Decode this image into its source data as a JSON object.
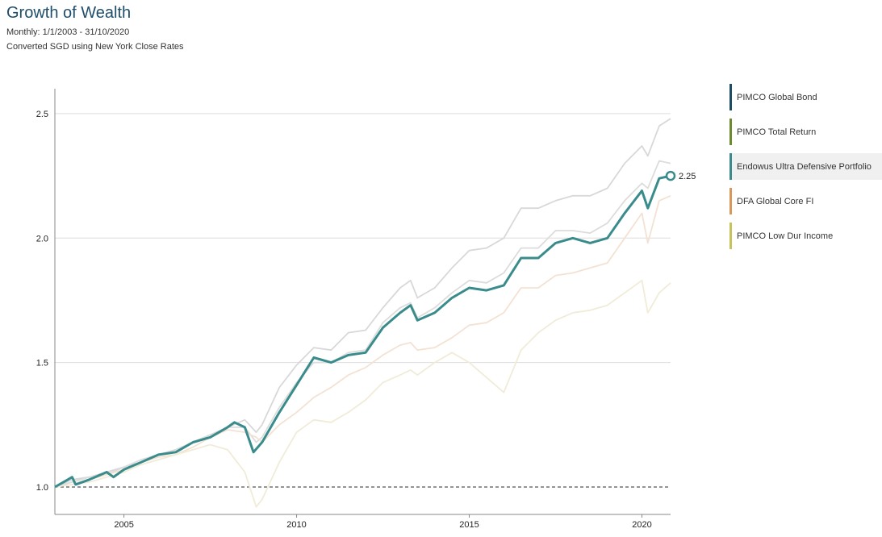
{
  "title": "Growth of Wealth",
  "subtitle_1": "Monthly: 1/1/2003 - 31/10/2020",
  "subtitle_2": "Converted SGD using New York Close Rates",
  "legend": [
    {
      "label": "PIMCO Global Bond",
      "color": "#1c4e63",
      "active": false
    },
    {
      "label": "PIMCO Total Return",
      "color": "#6c8a2e",
      "active": false
    },
    {
      "label": "Endowus Ultra Defensive Portfolio",
      "color": "#3a8c8c",
      "active": true
    },
    {
      "label": "DFA Global Core FI",
      "color": "#d9975a",
      "active": false
    },
    {
      "label": "PIMCO Low Dur Income",
      "color": "#c5c35a",
      "active": false
    }
  ],
  "chart_data": {
    "type": "line",
    "ylim": [
      0.89,
      2.6
    ],
    "xlim": [
      2003.0,
      2020.83
    ],
    "yticks": [
      1.0,
      1.5,
      2.0,
      2.5
    ],
    "xticks": [
      2005,
      2010,
      2015,
      2020
    ],
    "grid": true,
    "baseline": 1.0,
    "end_label": "2.25",
    "series": [
      {
        "name": "PIMCO Global Bond",
        "color": "#d8d8d8",
        "highlight": false,
        "points": [
          [
            2003.0,
            1.0
          ],
          [
            2003.5,
            1.03
          ],
          [
            2004.0,
            1.04
          ],
          [
            2004.5,
            1.06
          ],
          [
            2005.0,
            1.08
          ],
          [
            2005.5,
            1.1
          ],
          [
            2006.0,
            1.13
          ],
          [
            2006.5,
            1.15
          ],
          [
            2007.0,
            1.18
          ],
          [
            2007.5,
            1.21
          ],
          [
            2008.0,
            1.24
          ],
          [
            2008.5,
            1.27
          ],
          [
            2008.83,
            1.22
          ],
          [
            2009.0,
            1.25
          ],
          [
            2009.5,
            1.4
          ],
          [
            2010.0,
            1.49
          ],
          [
            2010.5,
            1.56
          ],
          [
            2011.0,
            1.55
          ],
          [
            2011.5,
            1.62
          ],
          [
            2012.0,
            1.63
          ],
          [
            2012.5,
            1.72
          ],
          [
            2013.0,
            1.8
          ],
          [
            2013.3,
            1.83
          ],
          [
            2013.5,
            1.76
          ],
          [
            2014.0,
            1.8
          ],
          [
            2014.5,
            1.88
          ],
          [
            2015.0,
            1.95
          ],
          [
            2015.5,
            1.96
          ],
          [
            2016.0,
            2.0
          ],
          [
            2016.5,
            2.12
          ],
          [
            2017.0,
            2.12
          ],
          [
            2017.5,
            2.15
          ],
          [
            2018.0,
            2.17
          ],
          [
            2018.5,
            2.17
          ],
          [
            2019.0,
            2.2
          ],
          [
            2019.5,
            2.3
          ],
          [
            2020.0,
            2.37
          ],
          [
            2020.17,
            2.33
          ],
          [
            2020.5,
            2.45
          ],
          [
            2020.83,
            2.48
          ]
        ]
      },
      {
        "name": "PIMCO Total Return",
        "color": "#dcdcdc",
        "highlight": false,
        "points": [
          [
            2003.0,
            1.0
          ],
          [
            2003.5,
            1.02
          ],
          [
            2004.0,
            1.04
          ],
          [
            2004.5,
            1.05
          ],
          [
            2005.0,
            1.08
          ],
          [
            2005.5,
            1.11
          ],
          [
            2006.0,
            1.13
          ],
          [
            2006.5,
            1.14
          ],
          [
            2007.0,
            1.18
          ],
          [
            2007.5,
            1.2
          ],
          [
            2008.0,
            1.24
          ],
          [
            2008.5,
            1.24
          ],
          [
            2008.83,
            1.18
          ],
          [
            2009.0,
            1.2
          ],
          [
            2009.5,
            1.32
          ],
          [
            2010.0,
            1.42
          ],
          [
            2010.5,
            1.5
          ],
          [
            2011.0,
            1.5
          ],
          [
            2011.5,
            1.54
          ],
          [
            2012.0,
            1.55
          ],
          [
            2012.5,
            1.66
          ],
          [
            2013.0,
            1.72
          ],
          [
            2013.3,
            1.74
          ],
          [
            2013.5,
            1.68
          ],
          [
            2014.0,
            1.72
          ],
          [
            2014.5,
            1.78
          ],
          [
            2015.0,
            1.83
          ],
          [
            2015.5,
            1.82
          ],
          [
            2016.0,
            1.86
          ],
          [
            2016.5,
            1.96
          ],
          [
            2017.0,
            1.96
          ],
          [
            2017.5,
            2.03
          ],
          [
            2018.0,
            2.03
          ],
          [
            2018.5,
            2.02
          ],
          [
            2019.0,
            2.06
          ],
          [
            2019.5,
            2.15
          ],
          [
            2020.0,
            2.22
          ],
          [
            2020.17,
            2.2
          ],
          [
            2020.5,
            2.31
          ],
          [
            2020.83,
            2.3
          ]
        ]
      },
      {
        "name": "DFA Global Core FI",
        "color": "#f3e2d3",
        "highlight": false,
        "points": [
          [
            2003.0,
            1.0
          ],
          [
            2003.5,
            1.01
          ],
          [
            2004.0,
            1.03
          ],
          [
            2004.5,
            1.05
          ],
          [
            2005.0,
            1.07
          ],
          [
            2005.5,
            1.1
          ],
          [
            2006.0,
            1.12
          ],
          [
            2006.5,
            1.13
          ],
          [
            2007.0,
            1.16
          ],
          [
            2007.5,
            1.2
          ],
          [
            2008.0,
            1.23
          ],
          [
            2008.5,
            1.22
          ],
          [
            2008.83,
            1.2
          ],
          [
            2009.0,
            1.18
          ],
          [
            2009.5,
            1.25
          ],
          [
            2010.0,
            1.3
          ],
          [
            2010.5,
            1.36
          ],
          [
            2011.0,
            1.4
          ],
          [
            2011.5,
            1.45
          ],
          [
            2012.0,
            1.48
          ],
          [
            2012.5,
            1.53
          ],
          [
            2013.0,
            1.57
          ],
          [
            2013.3,
            1.58
          ],
          [
            2013.5,
            1.55
          ],
          [
            2014.0,
            1.56
          ],
          [
            2014.5,
            1.6
          ],
          [
            2015.0,
            1.65
          ],
          [
            2015.5,
            1.66
          ],
          [
            2016.0,
            1.7
          ],
          [
            2016.5,
            1.8
          ],
          [
            2017.0,
            1.8
          ],
          [
            2017.5,
            1.85
          ],
          [
            2018.0,
            1.86
          ],
          [
            2018.5,
            1.88
          ],
          [
            2019.0,
            1.9
          ],
          [
            2019.5,
            2.0
          ],
          [
            2020.0,
            2.1
          ],
          [
            2020.17,
            1.98
          ],
          [
            2020.5,
            2.15
          ],
          [
            2020.83,
            2.17
          ]
        ]
      },
      {
        "name": "PIMCO Low Dur Income",
        "color": "#f0ecd8",
        "highlight": false,
        "points": [
          [
            2003.0,
            1.0
          ],
          [
            2003.5,
            1.01
          ],
          [
            2004.0,
            1.02
          ],
          [
            2004.5,
            1.04
          ],
          [
            2005.0,
            1.06
          ],
          [
            2005.5,
            1.09
          ],
          [
            2006.0,
            1.11
          ],
          [
            2006.5,
            1.13
          ],
          [
            2007.0,
            1.15
          ],
          [
            2007.5,
            1.17
          ],
          [
            2008.0,
            1.15
          ],
          [
            2008.5,
            1.06
          ],
          [
            2008.83,
            0.92
          ],
          [
            2009.0,
            0.95
          ],
          [
            2009.5,
            1.1
          ],
          [
            2010.0,
            1.22
          ],
          [
            2010.5,
            1.27
          ],
          [
            2011.0,
            1.26
          ],
          [
            2011.5,
            1.3
          ],
          [
            2012.0,
            1.35
          ],
          [
            2012.5,
            1.42
          ],
          [
            2013.0,
            1.45
          ],
          [
            2013.3,
            1.47
          ],
          [
            2013.5,
            1.45
          ],
          [
            2014.0,
            1.5
          ],
          [
            2014.5,
            1.54
          ],
          [
            2015.0,
            1.5
          ],
          [
            2015.5,
            1.44
          ],
          [
            2016.0,
            1.38
          ],
          [
            2016.5,
            1.55
          ],
          [
            2017.0,
            1.62
          ],
          [
            2017.5,
            1.67
          ],
          [
            2018.0,
            1.7
          ],
          [
            2018.5,
            1.71
          ],
          [
            2019.0,
            1.73
          ],
          [
            2019.5,
            1.78
          ],
          [
            2020.0,
            1.83
          ],
          [
            2020.17,
            1.7
          ],
          [
            2020.5,
            1.78
          ],
          [
            2020.83,
            1.82
          ]
        ]
      },
      {
        "name": "Endowus Ultra Defensive Portfolio",
        "color": "#3a8c8c",
        "highlight": true,
        "points": [
          [
            2003.0,
            1.0
          ],
          [
            2003.25,
            1.02
          ],
          [
            2003.5,
            1.04
          ],
          [
            2003.6,
            1.01
          ],
          [
            2004.0,
            1.03
          ],
          [
            2004.5,
            1.06
          ],
          [
            2004.7,
            1.04
          ],
          [
            2005.0,
            1.07
          ],
          [
            2005.5,
            1.1
          ],
          [
            2006.0,
            1.13
          ],
          [
            2006.5,
            1.14
          ],
          [
            2007.0,
            1.18
          ],
          [
            2007.5,
            1.2
          ],
          [
            2008.0,
            1.24
          ],
          [
            2008.2,
            1.26
          ],
          [
            2008.5,
            1.24
          ],
          [
            2008.75,
            1.14
          ],
          [
            2009.0,
            1.18
          ],
          [
            2009.5,
            1.3
          ],
          [
            2010.0,
            1.41
          ],
          [
            2010.5,
            1.52
          ],
          [
            2011.0,
            1.5
          ],
          [
            2011.5,
            1.53
          ],
          [
            2012.0,
            1.54
          ],
          [
            2012.5,
            1.64
          ],
          [
            2013.0,
            1.7
          ],
          [
            2013.3,
            1.73
          ],
          [
            2013.5,
            1.67
          ],
          [
            2014.0,
            1.7
          ],
          [
            2014.5,
            1.76
          ],
          [
            2015.0,
            1.8
          ],
          [
            2015.5,
            1.79
          ],
          [
            2016.0,
            1.81
          ],
          [
            2016.5,
            1.92
          ],
          [
            2017.0,
            1.92
          ],
          [
            2017.5,
            1.98
          ],
          [
            2018.0,
            2.0
          ],
          [
            2018.5,
            1.98
          ],
          [
            2019.0,
            2.0
          ],
          [
            2019.5,
            2.1
          ],
          [
            2020.0,
            2.19
          ],
          [
            2020.17,
            2.12
          ],
          [
            2020.5,
            2.24
          ],
          [
            2020.83,
            2.25
          ]
        ]
      }
    ]
  }
}
